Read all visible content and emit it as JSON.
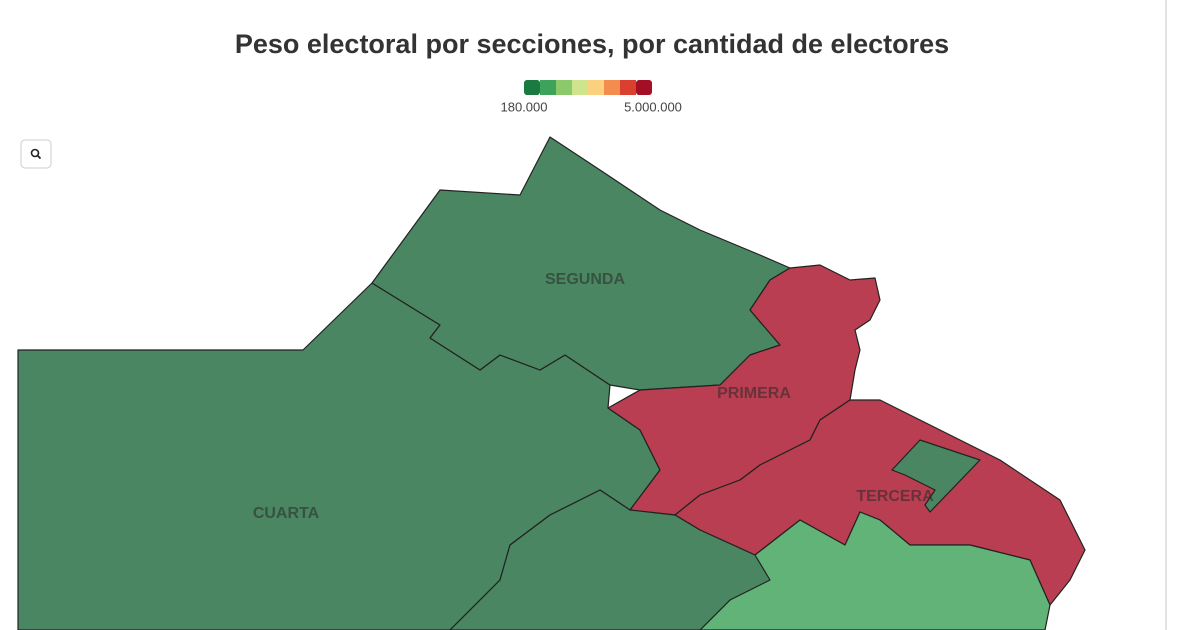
{
  "title": "Peso electoral por secciones, por cantidad de electores",
  "legend": {
    "colors": [
      "#1a7a3f",
      "#3ea35a",
      "#8cc96b",
      "#cfe48d",
      "#fbd07e",
      "#f48c4f",
      "#d9402f",
      "#a50f26"
    ],
    "min_label": "180.000",
    "max_label": "5.000.000"
  },
  "regions": [
    {
      "label": "CUARTA",
      "color": "#4a8661"
    },
    {
      "label": "SEGUNDA",
      "color": "#4a8661"
    },
    {
      "label": "PRIMERA",
      "color": "#b93e51"
    },
    {
      "label": "TERCERA",
      "color": "#b93e51"
    }
  ]
}
